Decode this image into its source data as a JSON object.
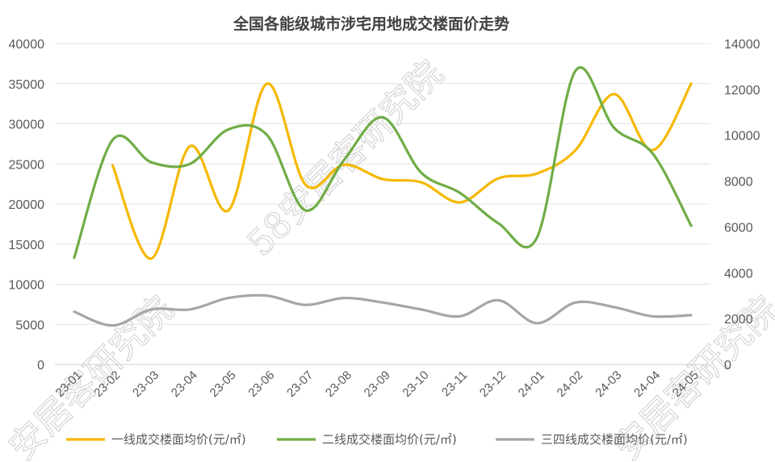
{
  "chart_data": {
    "type": "line",
    "title": "全国各能级城市涉宅用地成交楼面价走势",
    "categories": [
      "23-01",
      "23-02",
      "23-03",
      "23-04",
      "23-05",
      "23-06",
      "23-07",
      "23-08",
      "23-09",
      "23-10",
      "23-11",
      "23-12",
      "24-01",
      "24-02",
      "24-03",
      "24-04",
      "24-05"
    ],
    "y_left": {
      "min": 0,
      "max": 40000,
      "step": 5000,
      "ticks": [
        "0",
        "5000",
        "10000",
        "15000",
        "20000",
        "25000",
        "30000",
        "35000",
        "40000"
      ]
    },
    "y_right": {
      "min": 0,
      "max": 14000,
      "step": 2000,
      "ticks": [
        "0",
        "2000",
        "4000",
        "6000",
        "8000",
        "10000",
        "12000",
        "14000"
      ]
    },
    "grid": true,
    "legend_position": "bottom",
    "series": [
      {
        "name": "一线成交楼面均价(元/㎡)",
        "axis": "left",
        "color": "#F5B800",
        "values": [
          null,
          24800,
          13200,
          27200,
          19200,
          35000,
          22400,
          24900,
          23100,
          22700,
          20200,
          23200,
          23800,
          26700,
          33700,
          26700,
          35000
        ]
      },
      {
        "name": "二线成交楼面均价(元/㎡)",
        "axis": "left",
        "color": "#70AD47",
        "values": [
          13300,
          28000,
          25200,
          25000,
          29300,
          28600,
          19200,
          25500,
          30800,
          23900,
          21400,
          17600,
          15800,
          36600,
          29500,
          26300,
          17300
        ]
      },
      {
        "name": "三四线成交楼面均价(元/㎡)",
        "axis": "right",
        "color": "#A6A6A6",
        "values": [
          2300,
          1700,
          2400,
          2400,
          2900,
          3000,
          2600,
          2900,
          2700,
          2400,
          2100,
          2800,
          1800,
          2700,
          2500,
          2100,
          2150
        ]
      }
    ],
    "watermarks": [
      "58安居客研究院",
      "安居客研究院",
      "安居客研究院"
    ]
  }
}
